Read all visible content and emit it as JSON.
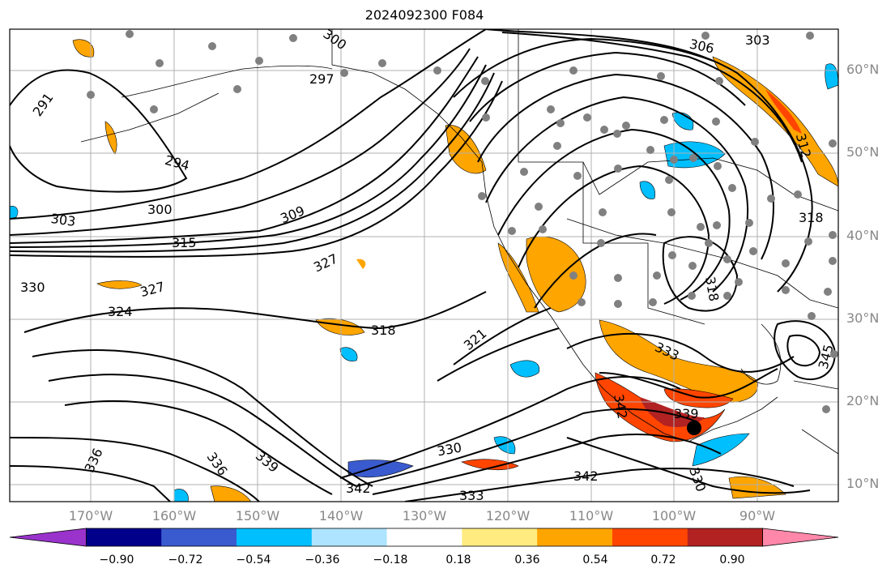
{
  "title": "2024092300 F084",
  "lat_labels": [
    "60°N",
    "50°N",
    "40°N",
    "30°N",
    "20°N",
    "10°N"
  ],
  "lon_labels": [
    "170°W",
    "160°W",
    "150°W",
    "140°W",
    "130°W",
    "120°W",
    "110°W",
    "100°W",
    "90°W"
  ],
  "colorbar": {
    "ticks": [
      "−0.90",
      "−0.72",
      "−0.54",
      "−0.36",
      "−0.18",
      "0.18",
      "0.36",
      "0.54",
      "0.72",
      "0.90"
    ],
    "colors": [
      "#9933cc",
      "#00008b",
      "#3a5bcf",
      "#00bfff",
      "#aee4ff",
      "#ffffff",
      "#ffeb80",
      "#ffa500",
      "#ff4500",
      "#b22222",
      "#ff88aa"
    ]
  },
  "contour_labels": [
    {
      "text": "291"
    },
    {
      "text": "294"
    },
    {
      "text": "297"
    },
    {
      "text": "300"
    },
    {
      "text": "300"
    },
    {
      "text": "303"
    },
    {
      "text": "303"
    },
    {
      "text": "306"
    },
    {
      "text": "309"
    },
    {
      "text": "315"
    },
    {
      "text": "318"
    },
    {
      "text": "318"
    },
    {
      "text": "318"
    },
    {
      "text": "321"
    },
    {
      "text": "324"
    },
    {
      "text": "327"
    },
    {
      "text": "327"
    },
    {
      "text": "330"
    },
    {
      "text": "330"
    },
    {
      "text": "330"
    },
    {
      "text": "333"
    },
    {
      "text": "333"
    },
    {
      "text": "336"
    },
    {
      "text": "336"
    },
    {
      "text": "339"
    },
    {
      "text": "339"
    },
    {
      "text": "342"
    },
    {
      "text": "342"
    },
    {
      "text": "342"
    },
    {
      "text": "345"
    },
    {
      "text": "312"
    }
  ]
}
